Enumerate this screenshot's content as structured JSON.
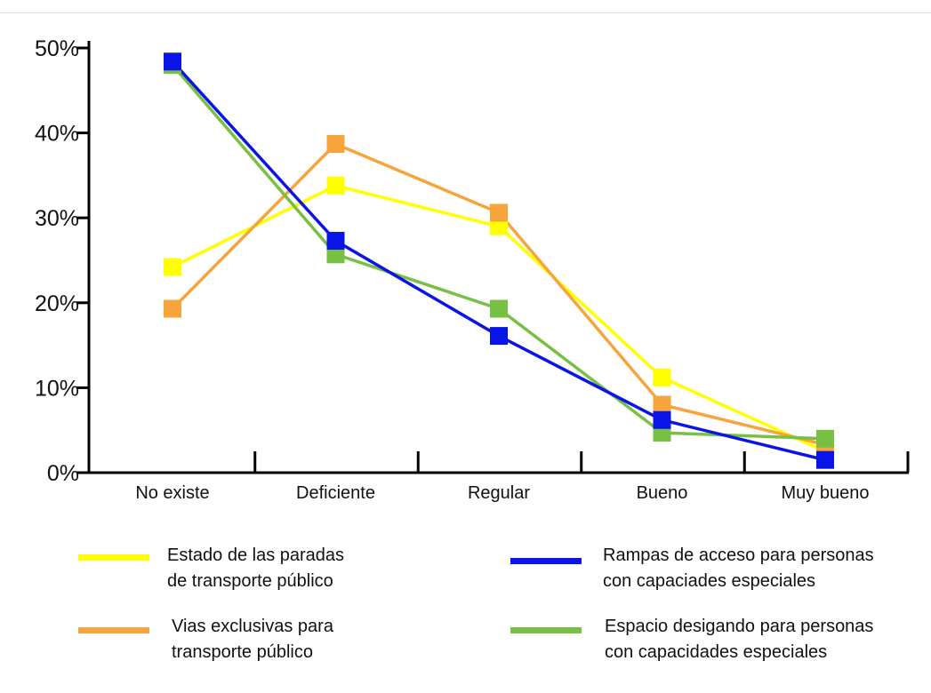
{
  "chart_data": {
    "type": "line",
    "categories": [
      "No existe",
      "Deficiente",
      "Regular",
      "Bueno",
      "Muy bueno"
    ],
    "y_ticks": [
      "0%",
      "10%",
      "20%",
      "30%",
      "40%",
      "50%"
    ],
    "ylim": [
      0,
      50
    ],
    "ylabel": "",
    "xlabel": "",
    "series": [
      {
        "name_lines": [
          "Estado de las paradas",
          "de transporte público"
        ],
        "color": "#ffff00",
        "values": [
          24.2,
          33.8,
          29.0,
          11.2,
          2.5
        ]
      },
      {
        "name_lines": [
          "Vias exclusivas para",
          "transporte público"
        ],
        "color": "#f7a43c",
        "values": [
          19.3,
          38.7,
          30.6,
          8.0,
          3.3
        ]
      },
      {
        "name_lines": [
          "Espacio desigando para personas",
          "con capacidades especiales"
        ],
        "color": "#78c043",
        "values": [
          48.0,
          25.7,
          19.3,
          4.7,
          4.0
        ]
      },
      {
        "name_lines": [
          "Rampas de acceso para personas",
          "con capaciades especiales"
        ],
        "color": "#0a14e6",
        "values": [
          48.4,
          27.3,
          16.1,
          6.2,
          1.5
        ]
      }
    ],
    "grid": false,
    "legend_position": "bottom"
  }
}
